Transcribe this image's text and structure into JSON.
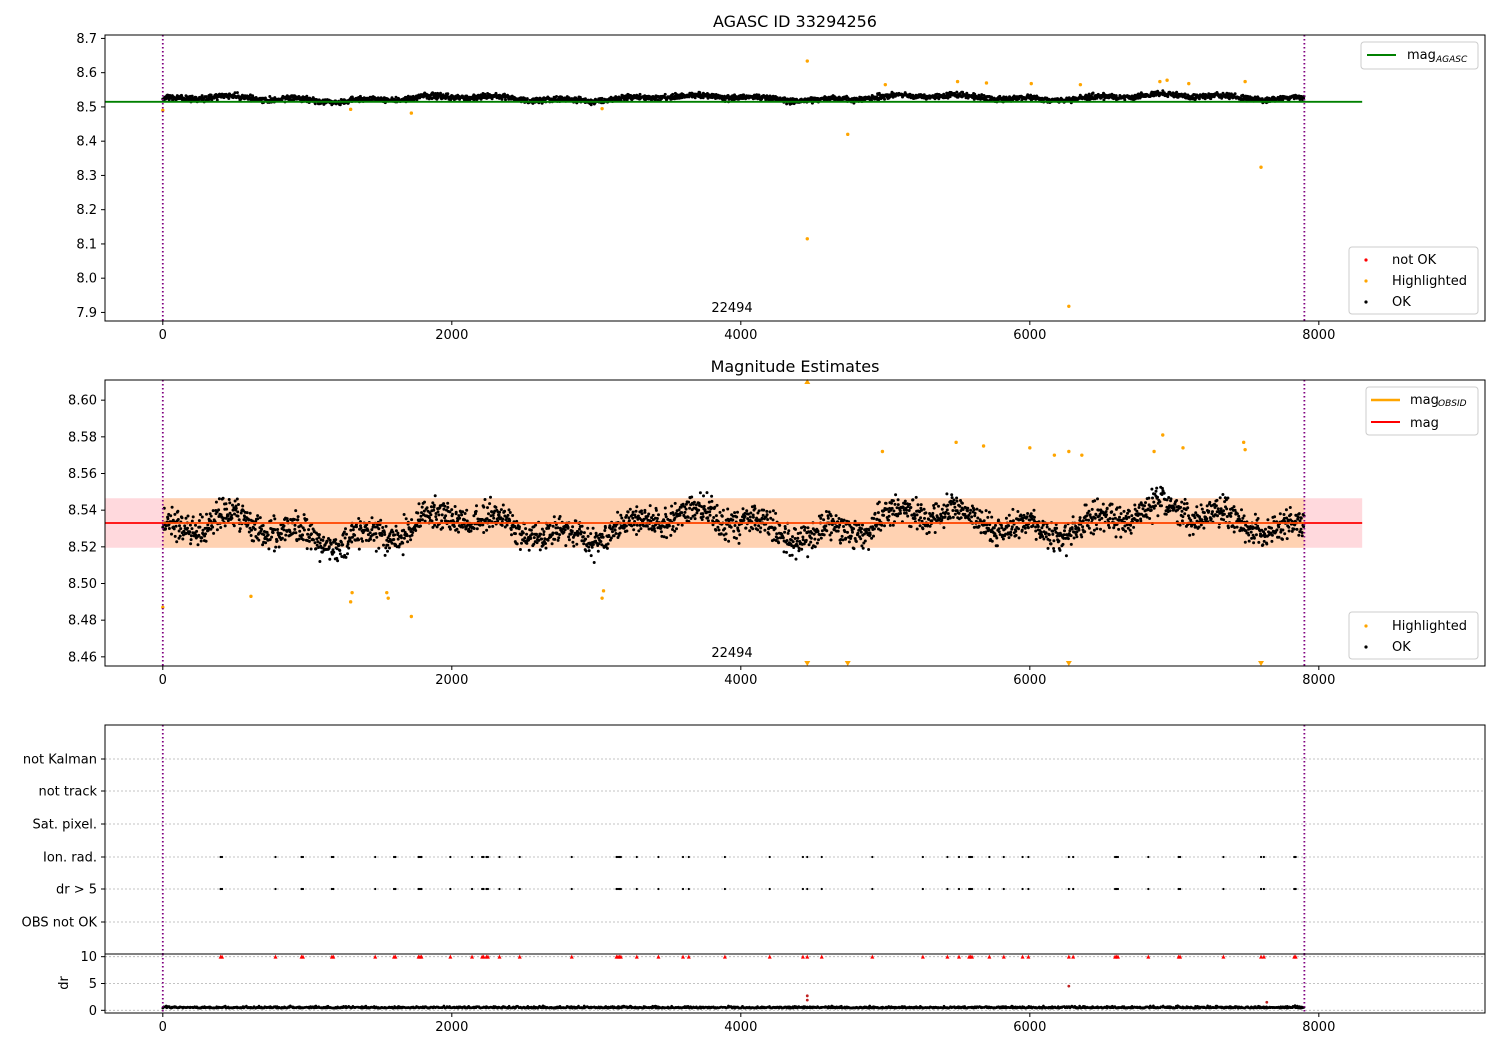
{
  "chart_data": [
    {
      "type": "scatter",
      "title": "AGASC ID 33294256",
      "xlim": [
        -400,
        9150
      ],
      "ylim": [
        7.875,
        8.71
      ],
      "x_ticks": [
        0,
        2000,
        4000,
        6000,
        8000
      ],
      "y_ticks": [
        7.9,
        8.0,
        8.1,
        8.2,
        8.3,
        8.4,
        8.5,
        8.6,
        8.7
      ],
      "y_tick_labels": [
        "7.9",
        "8.0",
        "8.1",
        "8.2",
        "8.3",
        "8.4",
        "8.5",
        "8.6",
        "8.7"
      ],
      "obsid_label": "22494",
      "obsid_label_x": 3950,
      "vlines": [
        0,
        7900
      ],
      "mag_agasc": 8.515,
      "mag_agasc_x_range": [
        -400,
        8300
      ],
      "ok_band": {
        "base": 8.522,
        "wave_amp": 0.006,
        "noise": 0.012,
        "x_range": [
          0,
          7900
        ]
      },
      "highlighted_outliers": [
        {
          "x": 4460,
          "y": 8.634
        },
        {
          "x": 4460,
          "y": 8.115
        },
        {
          "x": 4740,
          "y": 8.42
        },
        {
          "x": 6270,
          "y": 7.918
        },
        {
          "x": 7600,
          "y": 8.324
        },
        {
          "x": 0,
          "y": 8.49
        },
        {
          "x": 1300,
          "y": 8.493
        },
        {
          "x": 1720,
          "y": 8.482
        },
        {
          "x": 3040,
          "y": 8.495
        },
        {
          "x": 5000,
          "y": 8.565
        },
        {
          "x": 5500,
          "y": 8.574
        },
        {
          "x": 5700,
          "y": 8.57
        },
        {
          "x": 6010,
          "y": 8.568
        },
        {
          "x": 6350,
          "y": 8.565
        },
        {
          "x": 6900,
          "y": 8.574
        },
        {
          "x": 6950,
          "y": 8.578
        },
        {
          "x": 7100,
          "y": 8.568
        },
        {
          "x": 7490,
          "y": 8.574
        }
      ],
      "legend_upper": [
        {
          "label": "mag",
          "sub": "AGASC",
          "color": "#008000"
        }
      ],
      "legend_lower": [
        {
          "label": "not OK",
          "color": "#ff0000"
        },
        {
          "label": "Highlighted",
          "color": "#ffa500"
        },
        {
          "label": "OK",
          "color": "#000000"
        }
      ]
    },
    {
      "type": "scatter",
      "title": "Magnitude Estimates",
      "xlim": [
        -400,
        9150
      ],
      "ylim": [
        8.455,
        8.611
      ],
      "x_ticks": [
        0,
        2000,
        4000,
        6000,
        8000
      ],
      "y_ticks": [
        8.46,
        8.48,
        8.5,
        8.52,
        8.54,
        8.56,
        8.58,
        8.6
      ],
      "y_tick_labels": [
        "8.46",
        "8.48",
        "8.50",
        "8.52",
        "8.54",
        "8.56",
        "8.58",
        "8.60"
      ],
      "obsid_label": "22494",
      "obsid_label_x": 3950,
      "vlines": [
        0,
        7900
      ],
      "mag_mean": 8.533,
      "mag_band": [
        8.5195,
        8.5465
      ],
      "mag_x_range": [
        -400,
        8300
      ],
      "ok_band": {
        "base": 8.528,
        "wave_amp": 0.006,
        "noise": 0.012,
        "x_range": [
          0,
          7900
        ]
      },
      "highlighted_points": [
        {
          "x": 0,
          "y": 8.487
        },
        {
          "x": 610,
          "y": 8.493
        },
        {
          "x": 1300,
          "y": 8.49
        },
        {
          "x": 1310,
          "y": 8.495
        },
        {
          "x": 1550,
          "y": 8.495
        },
        {
          "x": 1560,
          "y": 8.492
        },
        {
          "x": 1720,
          "y": 8.482
        },
        {
          "x": 3040,
          "y": 8.492
        },
        {
          "x": 3050,
          "y": 8.496
        },
        {
          "x": 4980,
          "y": 8.572
        },
        {
          "x": 5490,
          "y": 8.577
        },
        {
          "x": 5680,
          "y": 8.575
        },
        {
          "x": 6000,
          "y": 8.574
        },
        {
          "x": 6170,
          "y": 8.57
        },
        {
          "x": 6270,
          "y": 8.572
        },
        {
          "x": 6360,
          "y": 8.57
        },
        {
          "x": 6860,
          "y": 8.572
        },
        {
          "x": 6920,
          "y": 8.581
        },
        {
          "x": 7060,
          "y": 8.574
        },
        {
          "x": 7480,
          "y": 8.577
        },
        {
          "x": 7490,
          "y": 8.573
        }
      ],
      "off_scale_top": [
        4460
      ],
      "off_scale_bottom": [
        4460,
        4740,
        6270,
        7600
      ],
      "legend_upper": [
        {
          "label": "mag",
          "sub": "OBSID",
          "color": "#ffa500"
        },
        {
          "label": "mag",
          "sub": "",
          "color": "#ff0000"
        }
      ],
      "legend_lower": [
        {
          "label": "Highlighted",
          "color": "#ffa500"
        },
        {
          "label": "OK",
          "color": "#000000"
        }
      ]
    },
    {
      "type": "scatter",
      "title": "",
      "xlim": [
        -400,
        9150
      ],
      "flag_rows": [
        "not Kalman",
        "not track",
        "Sat. pixel.",
        "Ion. rad.",
        "dr > 5",
        "OBS not OK"
      ],
      "flag_events_x": [
        400,
        410,
        780,
        960,
        970,
        1170,
        1180,
        1470,
        1600,
        1610,
        1770,
        1780,
        1790,
        1990,
        2140,
        2210,
        2220,
        2240,
        2250,
        2330,
        2470,
        2830,
        3140,
        3150,
        3160,
        3170,
        3280,
        3430,
        3600,
        3640,
        3890,
        4200,
        4430,
        4460,
        4560,
        4910,
        5260,
        5430,
        5510,
        5580,
        5590,
        5600,
        5720,
        5820,
        5950,
        5990,
        6270,
        6300,
        6590,
        6600,
        6610,
        6820,
        7030,
        7040,
        7340,
        7600,
        7620,
        7830,
        7840
      ],
      "dr_ylim": [
        -0.5,
        10.5
      ],
      "dr_ticks": [
        0,
        5,
        10
      ],
      "dr_ylabel": "dr",
      "dr_base": 0.4,
      "dr_outliers": [
        {
          "x": 4460,
          "y": 2.7
        },
        {
          "x": 4460,
          "y": 1.9
        },
        {
          "x": 6270,
          "y": 4.5
        },
        {
          "x": 7640,
          "y": 1.5
        }
      ]
    }
  ]
}
